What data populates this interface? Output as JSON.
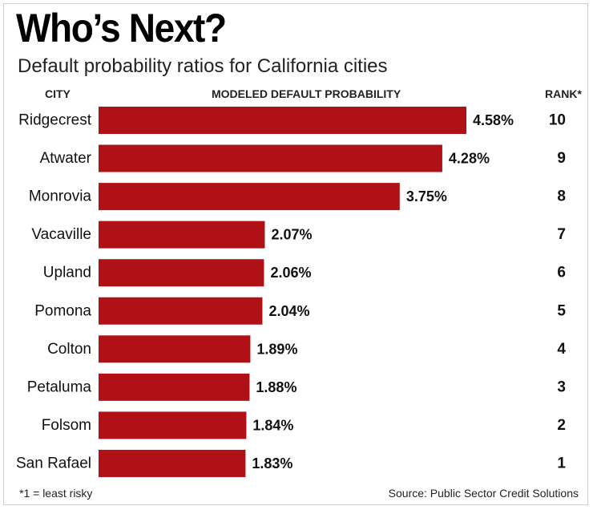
{
  "chart_data": {
    "type": "bar",
    "orientation": "horizontal",
    "title": "Who’s Next?",
    "subtitle": "Default probability ratios for California cities",
    "column_headers": {
      "city": "CITY",
      "probability": "MODELED DEFAULT PROBABILITY",
      "rank": "RANK*"
    },
    "categories": [
      "Ridgecrest",
      "Atwater",
      "Monrovia",
      "Vacaville",
      "Upland",
      "Pomona",
      "Colton",
      "Petaluma",
      "Folsom",
      "San Rafael"
    ],
    "values": [
      4.58,
      4.28,
      3.75,
      2.07,
      2.06,
      2.04,
      1.89,
      1.88,
      1.84,
      1.83
    ],
    "value_labels": [
      "4.58%",
      "4.28%",
      "3.75%",
      "2.07%",
      "2.06%",
      "2.04%",
      "1.89%",
      "1.88%",
      "1.84%",
      "1.83%"
    ],
    "ranks": [
      "10",
      "9",
      "8",
      "7",
      "6",
      "5",
      "4",
      "3",
      "2",
      "1"
    ],
    "bar_color": "#b01116",
    "grid": false,
    "footnote": "*1 = least risky",
    "source": "Source: Public Sector Credit Solutions"
  }
}
